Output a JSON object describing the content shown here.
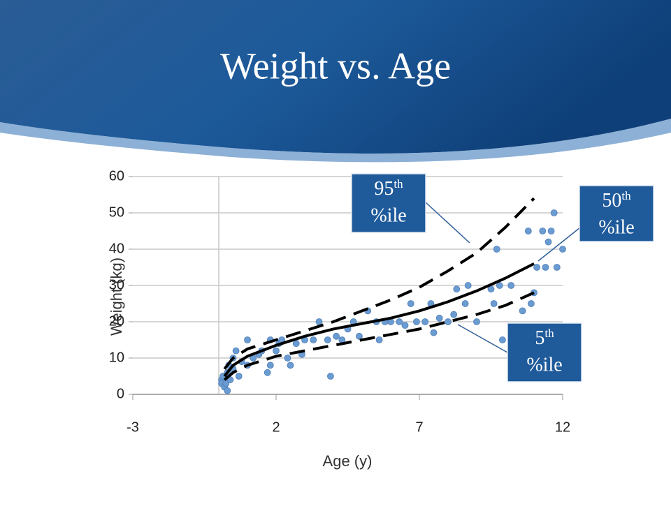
{
  "chart_data": {
    "type": "scatter",
    "title": "Weight vs. Age",
    "x_label": "Age (y)",
    "y_label": "Weight (kg)",
    "xlim": [
      -3,
      12
    ],
    "ylim": [
      0,
      60
    ],
    "xticks": [
      -3,
      2,
      7,
      12
    ],
    "yticks": [
      0,
      10,
      20,
      30,
      40,
      50,
      60
    ],
    "grid": true,
    "points": {
      "color": "#6a9bd1",
      "x": [
        0.1,
        0.1,
        0.15,
        0.2,
        0.25,
        0.3,
        0.3,
        0.35,
        0.4,
        0.5,
        0.5,
        0.6,
        0.7,
        0.8,
        1.0,
        1.0,
        1.2,
        1.4,
        1.5,
        1.7,
        1.8,
        1.8,
        2.0,
        2.1,
        2.2,
        2.4,
        2.5,
        2.7,
        2.9,
        3.0,
        3.3,
        3.5,
        3.8,
        3.9,
        4.1,
        4.3,
        4.5,
        4.7,
        4.9,
        5.2,
        5.5,
        5.6,
        5.8,
        6.0,
        6.3,
        6.5,
        6.7,
        6.9,
        7.2,
        7.4,
        7.5,
        7.7,
        8.0,
        8.2,
        8.3,
        8.6,
        8.7,
        9.0,
        9.5,
        9.6,
        9.7,
        9.8,
        9.9,
        10.2,
        10.6,
        10.8,
        10.9,
        11.0,
        11.1,
        11.3,
        11.4,
        11.5,
        11.6,
        11.7,
        11.8,
        12.0
      ],
      "y": [
        4,
        3,
        5,
        2,
        3,
        6,
        1,
        8,
        4,
        10,
        7,
        12,
        5,
        9,
        15,
        8,
        10,
        11,
        12,
        6,
        15,
        8,
        12,
        14,
        15,
        10,
        8,
        14,
        11,
        15,
        15,
        20,
        15,
        5,
        16,
        15,
        18,
        20,
        16,
        23,
        20,
        15,
        20,
        20,
        20,
        19,
        25,
        20,
        20,
        25,
        17,
        21,
        20,
        22,
        29,
        25,
        30,
        20,
        29,
        25,
        40,
        30,
        15,
        30,
        23,
        45,
        25,
        28,
        35,
        45,
        35,
        42,
        45,
        50,
        35,
        40
      ]
    },
    "curves": [
      {
        "color": "#000000",
        "dashed": false,
        "x": [
          0.2,
          0.5,
          1,
          2,
          3,
          4,
          5,
          6,
          7,
          8,
          9,
          10,
          11
        ],
        "y": [
          5,
          8,
          10.5,
          13.5,
          16,
          18,
          19.5,
          21,
          23,
          25.5,
          28.5,
          32,
          36
        ]
      },
      {
        "color": "#000000",
        "dashed": true,
        "x": [
          0.2,
          0.5,
          1,
          2,
          3,
          4,
          5,
          6,
          7,
          8,
          9,
          10,
          11
        ],
        "y": [
          7,
          10,
          12.5,
          15,
          17.5,
          20,
          23,
          26,
          29.5,
          34,
          39,
          46,
          54
        ]
      },
      {
        "color": "#000000",
        "dashed": true,
        "x": [
          0.2,
          0.5,
          1,
          2,
          3,
          4,
          5,
          6,
          7,
          8,
          9,
          10,
          11
        ],
        "y": [
          4,
          6,
          8,
          10.5,
          12,
          13.5,
          15,
          16.5,
          18,
          20,
          22,
          24.5,
          28
        ]
      }
    ],
    "annotations": [
      {
        "number": "95",
        "sup": "th",
        "line2": "%ile"
      },
      {
        "number": "50",
        "sup": "th",
        "line2": "%ile"
      },
      {
        "number": "5",
        "sup": "th",
        "line2": "%ile"
      }
    ]
  }
}
